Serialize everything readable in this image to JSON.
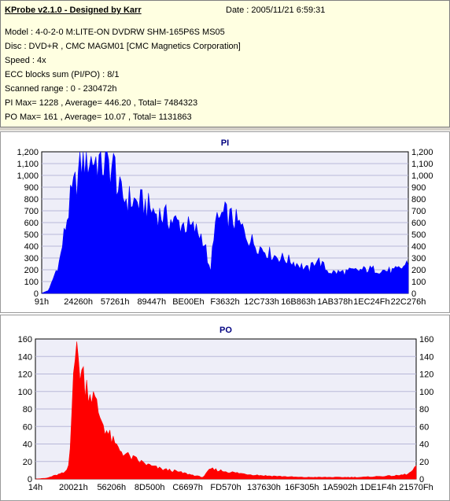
{
  "header": {
    "title": "KProbe v2.1.0 - Designed by Karr",
    "date": "Date : 2005/11/21 6:59:31",
    "model": "Model : 4-0-2-0 M:LITE-ON DVDRW SHM-165P6S MS05",
    "disc": "Disc : DVD+R , CMC MAGM01 [CMC Magnetics Corporation]",
    "speed": "Speed : 4x",
    "ecc": "ECC blocks sum (PI/PO) : 8/1",
    "range": "Scanned range : 0 - 230472h",
    "pi_stats": "PI Max= 1228 , Average= 446.20 , Total= 7484323",
    "po_stats": "PO Max= 161 , Average= 10.07 , Total= 1131863"
  },
  "chart_data": [
    {
      "type": "area",
      "title": "PI",
      "color": "#0000ff",
      "grid": true,
      "ylim": [
        0,
        1200
      ],
      "yticks": [
        0,
        100,
        200,
        300,
        400,
        500,
        600,
        700,
        800,
        900,
        1000,
        1100,
        1200
      ],
      "ytick_labels": [
        "0",
        "100",
        "200",
        "300",
        "400",
        "500",
        "600",
        "700",
        "800",
        "900",
        "1,000",
        "1,100",
        "1,200"
      ],
      "xtick_labels": [
        "91h",
        "24260h",
        "57261h",
        "89447h",
        "BE00Eh",
        "F3632h",
        "12C733h",
        "16B863h",
        "1AB378h",
        "1EC24Fh",
        "22C276h"
      ],
      "x_label_fraction": [
        0.0,
        0.0,
        0.09,
        0.2,
        0.32,
        0.44,
        0.56,
        0.68,
        0.8,
        0.91,
        1.0
      ],
      "x": [
        0,
        0.02,
        0.03,
        0.05,
        0.06,
        0.07,
        0.08,
        0.1,
        0.11,
        0.12,
        0.13,
        0.15,
        0.17,
        0.2,
        0.21,
        0.22,
        0.25,
        0.28,
        0.3,
        0.33,
        0.36,
        0.39,
        0.42,
        0.44,
        0.45,
        0.46,
        0.47,
        0.49,
        0.5,
        0.53,
        0.55,
        0.57,
        0.6,
        0.63,
        0.67,
        0.7,
        0.72,
        0.73,
        0.75,
        0.78,
        0.8,
        0.82,
        0.85,
        0.88,
        0.9,
        0.93,
        0.96,
        0.98,
        1.0
      ],
      "values": [
        0,
        30,
        120,
        300,
        500,
        680,
        850,
        1050,
        1180,
        1200,
        1200,
        1190,
        1150,
        1120,
        900,
        860,
        820,
        790,
        740,
        690,
        640,
        610,
        560,
        500,
        350,
        150,
        580,
        690,
        700,
        640,
        560,
        470,
        400,
        340,
        300,
        260,
        220,
        210,
        310,
        200,
        185,
        190,
        200,
        210,
        215,
        205,
        200,
        220,
        280
      ]
    },
    {
      "type": "area",
      "title": "PO",
      "color": "#ff0000",
      "grid": true,
      "ylim": [
        0,
        160
      ],
      "yticks": [
        0,
        20,
        40,
        60,
        80,
        100,
        120,
        140,
        160
      ],
      "ytick_labels": [
        "0",
        "20",
        "40",
        "60",
        "80",
        "100",
        "120",
        "140",
        "160"
      ],
      "xtick_labels": [
        "14h",
        "20021h",
        "56206h",
        "8D500h",
        "C6697h",
        "FD570h",
        "137630h",
        "16F305h",
        "1A5902h",
        "1DE1F4h",
        "21570Fh"
      ],
      "x_label_fraction": [
        0.0,
        0.0,
        0.09,
        0.2,
        0.32,
        0.44,
        0.56,
        0.68,
        0.8,
        0.91,
        1.0
      ],
      "x": [
        0,
        0.03,
        0.05,
        0.08,
        0.09,
        0.1,
        0.11,
        0.13,
        0.15,
        0.17,
        0.19,
        0.21,
        0.23,
        0.25,
        0.27,
        0.3,
        0.33,
        0.36,
        0.38,
        0.4,
        0.42,
        0.44,
        0.46,
        0.5,
        0.55,
        0.6,
        0.65,
        0.7,
        0.75,
        0.8,
        0.85,
        0.9,
        0.95,
        0.98,
        1.0
      ],
      "values": [
        0,
        1,
        4,
        8,
        20,
        150,
        145,
        118,
        100,
        75,
        55,
        40,
        32,
        26,
        22,
        16,
        12,
        10,
        8,
        6,
        4,
        2,
        12,
        9,
        6,
        4,
        3,
        2,
        2,
        2,
        2,
        3,
        4,
        6,
        14
      ]
    }
  ]
}
